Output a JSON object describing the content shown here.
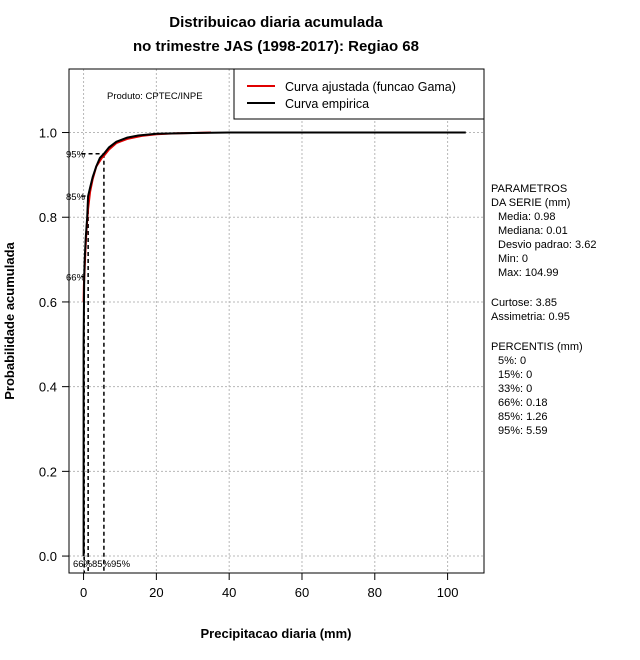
{
  "chart_data": {
    "type": "line",
    "title_line1": "Distribuicao diaria acumulada",
    "title_line2": "no trimestre JAS (1998-2017): Regiao 68",
    "xlabel": "Precipitacao diaria (mm)",
    "ylabel": "Probabilidade acumulada",
    "xlim": [
      -4,
      110
    ],
    "ylim": [
      -0.04,
      1.15
    ],
    "x_ticks": [
      0,
      20,
      40,
      60,
      80,
      100
    ],
    "x_tick_labels": [
      "0",
      "20",
      "40",
      "60",
      "80",
      "100"
    ],
    "y_ticks": [
      0.0,
      0.2,
      0.4,
      0.6,
      0.8,
      1.0
    ],
    "y_tick_labels": [
      "0.0",
      "0.2",
      "0.4",
      "0.6",
      "0.8",
      "1.0"
    ],
    "grid": true,
    "product_label": "Produto: CPTEC/INPE",
    "legend": {
      "position": "top-right",
      "entries": [
        {
          "label": "Curva ajustada (funcao Gama)",
          "color": "#e00000"
        },
        {
          "label": "Curva empirica",
          "color": "#000000"
        }
      ]
    },
    "series": [
      {
        "name": "Curva ajustada (funcao Gama)",
        "color": "#e00000",
        "x": [
          0,
          0.1,
          0.25,
          0.5,
          0.8,
          1.26,
          1.8,
          2.5,
          3.5,
          5,
          5.59,
          7,
          9,
          12,
          16,
          20,
          25,
          30,
          35
        ],
        "y": [
          0.6,
          0.64,
          0.67,
          0.72,
          0.77,
          0.82,
          0.86,
          0.89,
          0.92,
          0.94,
          0.945,
          0.96,
          0.975,
          0.985,
          0.992,
          0.996,
          0.998,
          0.999,
          1.0
        ]
      },
      {
        "name": "Curva empirica",
        "color": "#000000",
        "x": [
          0,
          0.01,
          0.18,
          0.3,
          0.6,
          1.0,
          1.26,
          1.8,
          2.5,
          3.5,
          4.5,
          5.59,
          7,
          9,
          12,
          15,
          20,
          25,
          30,
          40,
          60,
          80,
          104.99
        ],
        "y": [
          0.0,
          0.5,
          0.66,
          0.7,
          0.75,
          0.8,
          0.85,
          0.87,
          0.895,
          0.92,
          0.94,
          0.95,
          0.965,
          0.978,
          0.988,
          0.993,
          0.997,
          0.998,
          0.999,
          1.0,
          1.0,
          1.0,
          1.0
        ]
      }
    ],
    "percentile_markers": [
      {
        "label": "66%",
        "x": 0.18,
        "y": 0.66
      },
      {
        "label": "85%",
        "x": 1.26,
        "y": 0.85
      },
      {
        "label": "95%",
        "x": 5.59,
        "y": 0.95
      }
    ],
    "bottom_marker_labels": "66%85%95%"
  },
  "stats_panel": {
    "heading1": "PARAMETROS",
    "heading2": "DA SERIE (mm)",
    "media": "Media: 0.98",
    "mediana": "Mediana: 0.01",
    "desvio": "Desvio padrao: 3.62",
    "min": "Min: 0",
    "max": "Max: 104.99",
    "curtose": "Curtose: 3.85",
    "assimetria": "Assimetria: 0.95",
    "percentis_heading": "PERCENTIS (mm)",
    "p5": "5%: 0",
    "p15": "15%: 0",
    "p33": "33%: 0",
    "p66": "66%: 0.18",
    "p85": "85%: 1.26",
    "p95": "95%: 5.59"
  }
}
